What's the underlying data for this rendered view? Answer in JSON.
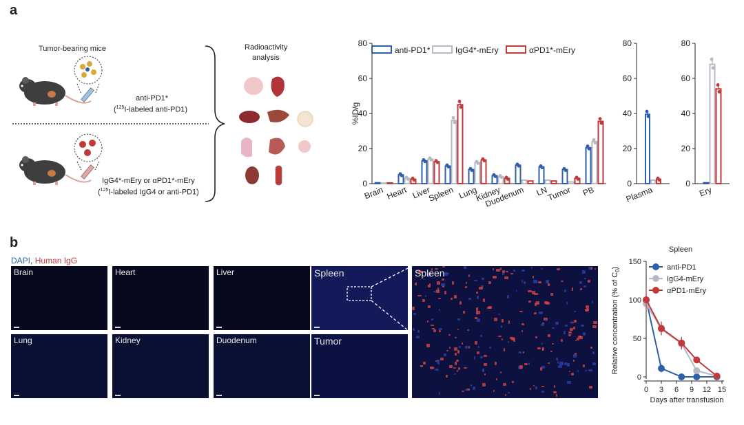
{
  "panel_a": {
    "letter": "a",
    "schematic": {
      "mice_title": "Tumor-bearing mice",
      "analysis_title_line1": "Radioactivity",
      "analysis_title_line2": "analysis",
      "group1_line1": "anti-PD1*",
      "group1_line2_sup": "125",
      "group1_line2_rest": "I-labeled anti-PD1)",
      "group2_line1": "IgG4*-mEry or αPD1*-mEry",
      "group2_line2_sup": "125",
      "group2_line2_rest": "I-labeled IgG4 or anti-PD1)"
    }
  },
  "panel_b": {
    "letter": "b",
    "stain_dapi": "DAPI",
    "stain_sep": ",",
    "stain_igg": " Human IgG",
    "tiles": [
      "Brain",
      "Heart",
      "Liver",
      "Spleen",
      "Lung",
      "Kidney",
      "Duodenum",
      "Tumor"
    ],
    "zoom_label": "Spleen"
  },
  "colors": {
    "anti_pd1": "#2f5fa8",
    "igg4_mery": "#b5b9c2",
    "apd1_mery": "#c0393b",
    "dapi": "#2f5fa8",
    "igg": "#c0393b"
  },
  "chart_data": [
    {
      "type": "bar",
      "ylabel": "%ID/g",
      "ylim": [
        0,
        80
      ],
      "yticks": [
        0,
        20,
        40,
        60,
        80
      ],
      "legend_placement": "top",
      "categories": [
        "Brain",
        "Heart",
        "Liver",
        "Spleen",
        "Lung",
        "Kidney",
        "Duodenum",
        "LN",
        "Tumor",
        "PB"
      ],
      "series": [
        {
          "name": "anti-PD1*",
          "values": [
            0.5,
            5,
            13,
            10,
            8,
            4.5,
            10.5,
            9.5,
            8,
            20.5
          ]
        },
        {
          "name": "IgG4*-mEry",
          "values": [
            0.3,
            3,
            14,
            36,
            12,
            4,
            2,
            2,
            1,
            24
          ]
        },
        {
          "name": "αPD1*-mEry",
          "values": [
            0.4,
            2.5,
            12.5,
            45,
            13.5,
            3,
            1.5,
            1.5,
            3,
            35.5
          ]
        }
      ]
    },
    {
      "type": "bar",
      "ylim": [
        0,
        80
      ],
      "yticks": [
        0,
        20,
        40,
        60,
        80
      ],
      "categories": [
        "Plasma"
      ],
      "series": [
        {
          "name": "anti-PD1*",
          "values": [
            39.5
          ]
        },
        {
          "name": "IgG4*-mEry",
          "values": [
            2
          ]
        },
        {
          "name": "αPD1*-mEry",
          "values": [
            2.5
          ]
        }
      ]
    },
    {
      "type": "bar",
      "ylim": [
        0,
        80
      ],
      "yticks": [
        0,
        20,
        40,
        60,
        80
      ],
      "categories": [
        "Ery"
      ],
      "series": [
        {
          "name": "anti-PD1*",
          "values": [
            0.5
          ]
        },
        {
          "name": "IgG4*-mEry",
          "values": [
            68
          ]
        },
        {
          "name": "αPD1*-mEry",
          "values": [
            54
          ]
        }
      ]
    },
    {
      "type": "line",
      "title": "Spleen",
      "xlabel": "Days after transfusion",
      "ylabel_main": "Relative concentration (% of C",
      "ylabel_sub": "0",
      "ylabel_end": ")",
      "xlim": [
        0,
        15
      ],
      "ylim": [
        0,
        150
      ],
      "xticks": [
        0,
        3,
        6,
        9,
        12,
        15
      ],
      "yticks": [
        0,
        50,
        100,
        150
      ],
      "legend_placement": "top-right",
      "series": [
        {
          "name": "anti-PD1",
          "x": [
            0,
            3,
            7,
            10,
            14
          ],
          "y": [
            100,
            11,
            0,
            0,
            0
          ],
          "err": [
            12,
            5,
            0,
            0,
            0
          ]
        },
        {
          "name": "IgG4-mEry",
          "x": [
            0,
            3,
            7,
            10,
            14
          ],
          "y": [
            95,
            62,
            43,
            8,
            1
          ],
          "err": [
            8,
            8,
            8,
            3,
            1
          ]
        },
        {
          "name": "αPD1-mEry",
          "x": [
            0,
            3,
            7,
            10,
            14
          ],
          "y": [
            100,
            63,
            44,
            22,
            1
          ],
          "err": [
            14,
            9,
            8,
            3,
            1
          ]
        }
      ]
    }
  ]
}
